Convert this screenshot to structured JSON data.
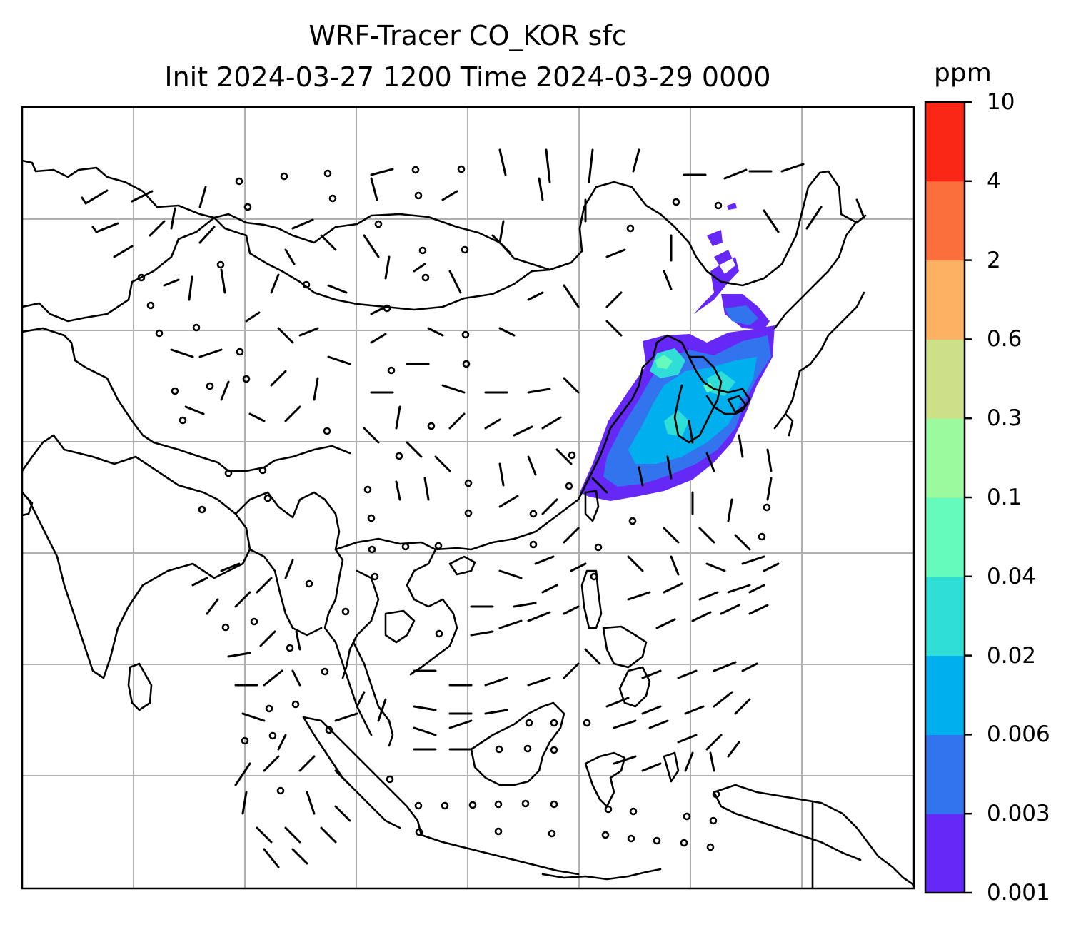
{
  "title": {
    "line1": "WRF-Tracer CO_KOR sfc",
    "line2": "Init 2024-03-27 1200 Time 2024-03-29 0000"
  },
  "colorbar": {
    "unit": "ppm",
    "levels": [
      "0.001",
      "0.003",
      "0.006",
      "0.02",
      "0.04",
      "0.1",
      "0.3",
      "0.6",
      "2",
      "4",
      "10"
    ],
    "colors": [
      "#6528f7",
      "#3274ee",
      "#00b0ee",
      "#2fded7",
      "#65fbbc",
      "#9bf99e",
      "#cee087",
      "#fdb162",
      "#fb6f3c",
      "#fb2716"
    ]
  },
  "map": {
    "background": "#ffffff",
    "gridline_color": "#b0b0b0",
    "coastline_color": "#000000"
  },
  "chart_data": {
    "type": "heatmap",
    "variable": "CO_KOR",
    "level": "sfc",
    "init": "2024-03-27 1200",
    "valid": "2024-03-29 0000",
    "unit": "ppm",
    "bins": [
      0.001,
      0.003,
      0.006,
      0.02,
      0.04,
      0.1,
      0.3,
      0.6,
      2,
      4,
      10
    ],
    "plume_max_bin": "0.04-0.1",
    "grid": true
  }
}
